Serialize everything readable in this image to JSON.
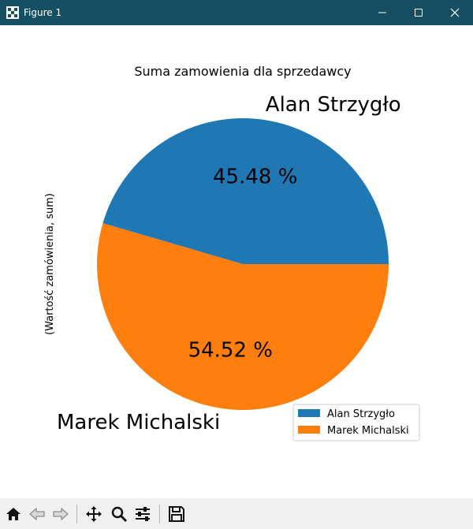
{
  "window": {
    "title": "Figure 1",
    "titlebar_color": "#164f61",
    "controls": [
      "minimize-icon",
      "maximize-icon",
      "close-icon"
    ]
  },
  "toolbar": {
    "buttons": [
      "home-icon",
      "back-arrow-icon",
      "forward-arrow-icon",
      "pan-icon",
      "zoom-icon",
      "configure-subplots-icon",
      "save-icon"
    ]
  },
  "chart_data": {
    "type": "pie",
    "title": "Suma zamowienia dla sprzedawcy",
    "ylabel": "(Wartość zamówienia, sum)",
    "slices": [
      {
        "label": "Alan Strzygło",
        "value": 45.48,
        "pct_label": "45.48 %",
        "color": "#1f77b4"
      },
      {
        "label": "Marek Michalski",
        "value": 54.52,
        "pct_label": "54.52 %",
        "color": "#ff7f0e"
      }
    ],
    "start_angle_deg": 0,
    "legend": {
      "position": "lower-right",
      "entries": [
        "Alan Strzygło",
        "Marek Michalski"
      ]
    }
  }
}
